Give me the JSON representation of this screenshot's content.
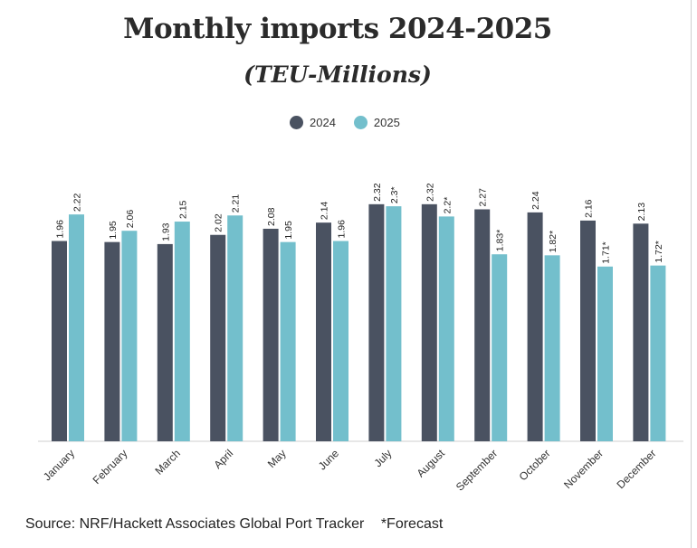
{
  "title": "Monthly imports 2024-2025",
  "subtitle": "(TEU-Millions)",
  "legend": [
    {
      "label": "2024",
      "color": "#4a5261"
    },
    {
      "label": "2025",
      "color": "#73bfcc"
    }
  ],
  "footer": {
    "source": "Source: NRF/Hackett Associates Global Port Tracker",
    "note": "*Forecast"
  },
  "chart_data": {
    "type": "bar",
    "categories": [
      "January",
      "February",
      "March",
      "April",
      "May",
      "June",
      "July",
      "August",
      "September",
      "October",
      "November",
      "December"
    ],
    "series": [
      {
        "name": "2024",
        "color": "#4a5261",
        "values": [
          1.96,
          1.95,
          1.93,
          2.02,
          2.08,
          2.14,
          2.32,
          2.32,
          2.27,
          2.24,
          2.16,
          2.13
        ],
        "labels": [
          "1.96",
          "1.95",
          "1.93",
          "2.02",
          "2.08",
          "2.14",
          "2.32",
          "2.32",
          "2.27",
          "2.24",
          "2.16",
          "2.13"
        ]
      },
      {
        "name": "2025",
        "color": "#73bfcc",
        "values": [
          2.22,
          2.06,
          2.15,
          2.21,
          1.95,
          1.96,
          2.3,
          2.2,
          1.83,
          1.82,
          1.71,
          1.72
        ],
        "labels": [
          "2.22",
          "2.06",
          "2.15",
          "2.21",
          "1.95",
          "1.96",
          "2.3*",
          "2.2*",
          "1.83*",
          "1.82*",
          "1.71*",
          "1.72*"
        ]
      }
    ],
    "title": "Monthly imports 2024-2025",
    "ylabel": "",
    "xlabel": "",
    "ylim": [
      0,
      2.32
    ],
    "grid": false,
    "legend_position": "top-center"
  }
}
